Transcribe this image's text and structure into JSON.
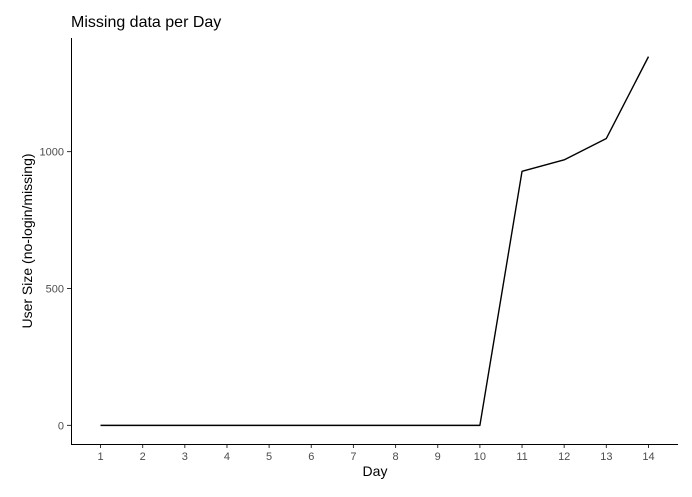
{
  "chart_data": {
    "type": "line",
    "title": "Missing data per Day",
    "xlabel": "Day",
    "ylabel": "User Size (no-login/missing)",
    "x": [
      1,
      2,
      3,
      4,
      5,
      6,
      7,
      8,
      9,
      10,
      11,
      12,
      13,
      14
    ],
    "series": [
      {
        "values": [
          0,
          0,
          0,
          0,
          0,
          0,
          0,
          0,
          0,
          0,
          928,
          970,
          1048,
          1347
        ]
      }
    ],
    "xticks": [
      "1",
      "2",
      "3",
      "4",
      "5",
      "6",
      "7",
      "8",
      "9",
      "10",
      "11",
      "12",
      "13",
      "14"
    ],
    "yticks": [
      0,
      500,
      1000
    ],
    "xlim": [
      0.3,
      14.7
    ],
    "ylim": [
      -68,
      1415
    ],
    "grid": false,
    "line_color": "#000000"
  }
}
